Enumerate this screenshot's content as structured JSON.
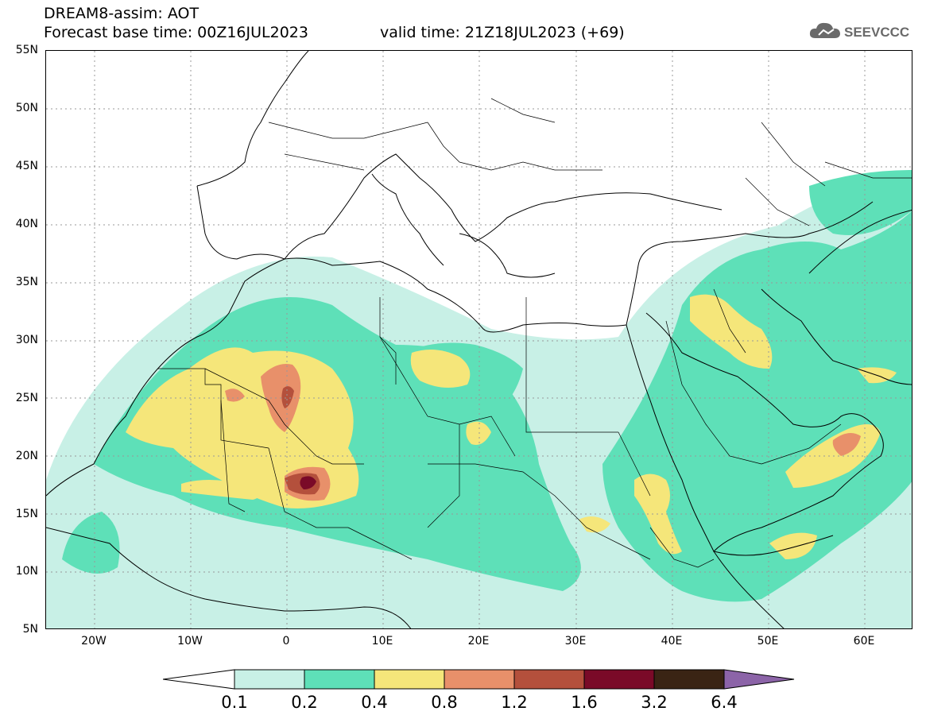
{
  "header": {
    "title_line1": "DREAM8-assim: AOT",
    "title_line2": "Forecast base time: 00Z16JUL2023",
    "valid_time": "valid time: 21Z18JUL2023 (+69)",
    "logo_text": "SEEVCCC",
    "logo_icon": "cloud-icon"
  },
  "map": {
    "variable": "AOT",
    "lon_range": [
      -25,
      65
    ],
    "lat_range": [
      5,
      55
    ],
    "y_ticks": [
      "55N",
      "50N",
      "45N",
      "40N",
      "35N",
      "30N",
      "25N",
      "20N",
      "15N",
      "10N",
      "5N"
    ],
    "x_ticks": [
      "20W",
      "10W",
      "0",
      "10E",
      "20E",
      "30E",
      "40E",
      "50E",
      "60E"
    ],
    "grid": "dotted"
  },
  "colorbar": {
    "labels": [
      "0.1",
      "0.2",
      "0.4",
      "0.8",
      "1.2",
      "1.6",
      "3.2",
      "6.4"
    ],
    "colors": [
      "#ffffff",
      "#c8f0e6",
      "#5ee0b8",
      "#f5e67a",
      "#e8906a",
      "#b4503c",
      "#7a0a28",
      "#3a2414",
      "#8c64a8"
    ]
  }
}
